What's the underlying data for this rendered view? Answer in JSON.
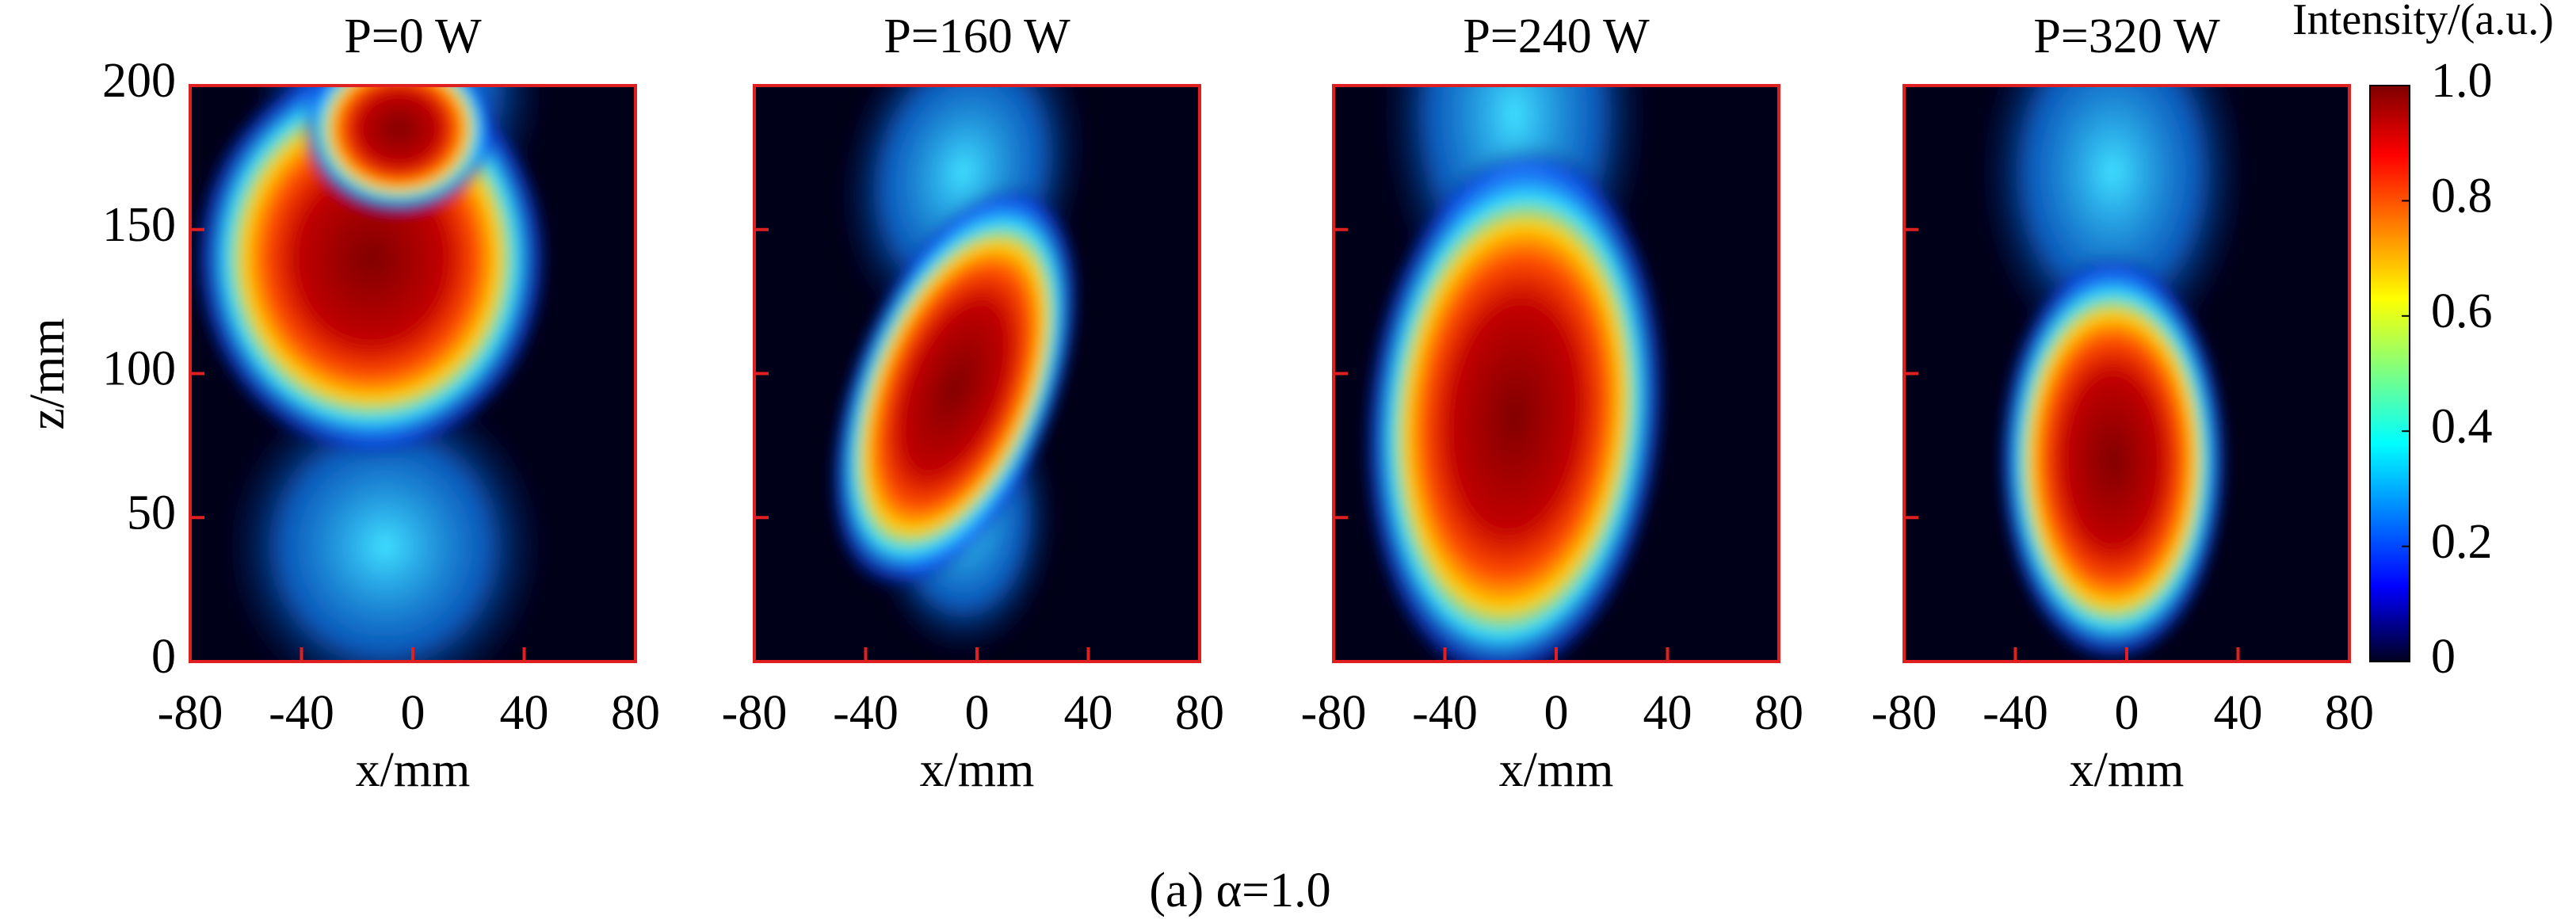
{
  "chart_data": [
    {
      "type": "heatmap",
      "title": "P=0 W",
      "xlabel": "x/mm",
      "ylabel": "z/mm",
      "xlim": [
        -80,
        80
      ],
      "xticks": [
        -80,
        -40,
        0,
        40,
        80
      ],
      "ylim": [
        0,
        200
      ],
      "yticks": [
        0,
        50,
        100,
        150,
        200
      ]
    },
    {
      "type": "heatmap",
      "title": "P=160 W",
      "xlabel": "x/mm",
      "xlim": [
        -80,
        80
      ],
      "xticks": [
        -80,
        -40,
        0,
        40,
        80
      ],
      "ylim": [
        0,
        200
      ]
    },
    {
      "type": "heatmap",
      "title": "P=240 W",
      "xlabel": "x/mm",
      "xlim": [
        -80,
        80
      ],
      "xticks": [
        -80,
        -40,
        0,
        40,
        80
      ],
      "ylim": [
        0,
        200
      ]
    },
    {
      "type": "heatmap",
      "title": "P=320 W",
      "xlabel": "x/mm",
      "xlim": [
        -80,
        80
      ],
      "xticks": [
        -80,
        -40,
        0,
        40,
        80
      ],
      "ylim": [
        0,
        200
      ]
    }
  ],
  "colorbar": {
    "label": "Intensity/(a.u.)",
    "lim": [
      0,
      1
    ],
    "ticks": [
      0,
      0.2,
      0.4,
      0.6,
      0.8,
      {
        "value": 1,
        "label": "1.0"
      }
    ]
  },
  "caption": "(a) α=1.0"
}
